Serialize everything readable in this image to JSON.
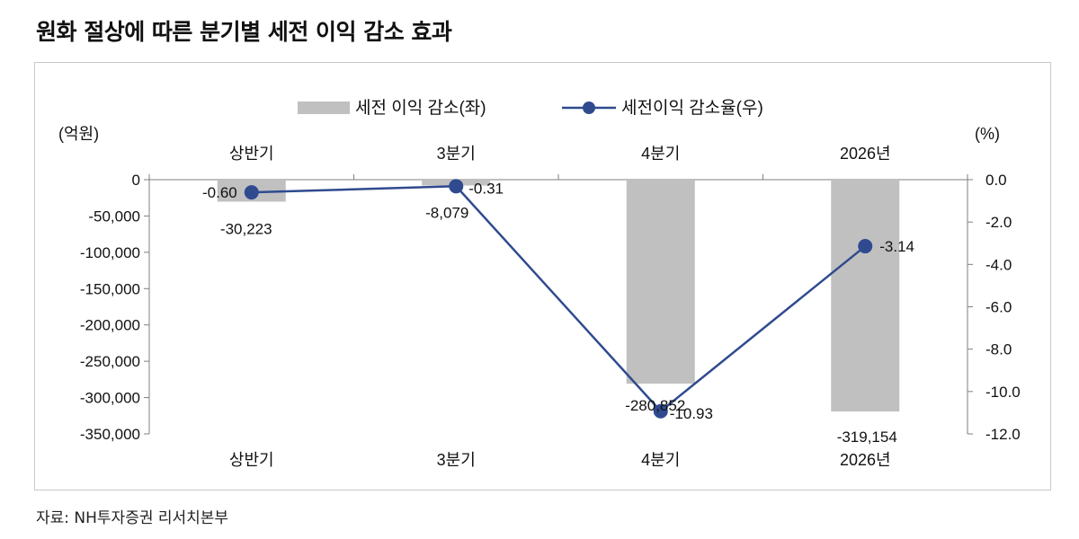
{
  "title": "원화 절상에 따른 분기별 세전 이익 감소 효과",
  "source": "자료: NH투자증권 리서치본부",
  "chart_data": {
    "type": "bar+line",
    "categories": [
      "상반기",
      "3분기",
      "4분기",
      "2026년"
    ],
    "left_axis_unit": "(억원)",
    "right_axis_unit": "(%)",
    "left_ylim": [
      -350000,
      0
    ],
    "left_ticks": [
      "0",
      "-50,000",
      "-100,000",
      "-150,000",
      "-200,000",
      "-250,000",
      "-300,000",
      "-350,000"
    ],
    "right_ylim": [
      -12.0,
      0.0
    ],
    "right_ticks": [
      "0.0",
      "-2.0",
      "-4.0",
      "-6.0",
      "-8.0",
      "-10.0",
      "-12.0"
    ],
    "legend_placement": "top-center",
    "series": [
      {
        "name": "세전 이익 감소(좌)",
        "type": "bar",
        "axis": "left",
        "color": "#c0c0c0",
        "values": [
          -30223,
          -8079,
          -280852,
          -319154
        ],
        "labels": [
          "-30,223",
          "-8,079",
          "-280,852",
          "-319,154"
        ]
      },
      {
        "name": "세전이익 감소율(우)",
        "type": "line",
        "axis": "right",
        "color": "#2f4a8f",
        "values": [
          -0.6,
          -0.31,
          -10.93,
          -3.14
        ],
        "labels": [
          "-0.60",
          "-0.31",
          "-10.93",
          "-3.14"
        ]
      }
    ]
  }
}
